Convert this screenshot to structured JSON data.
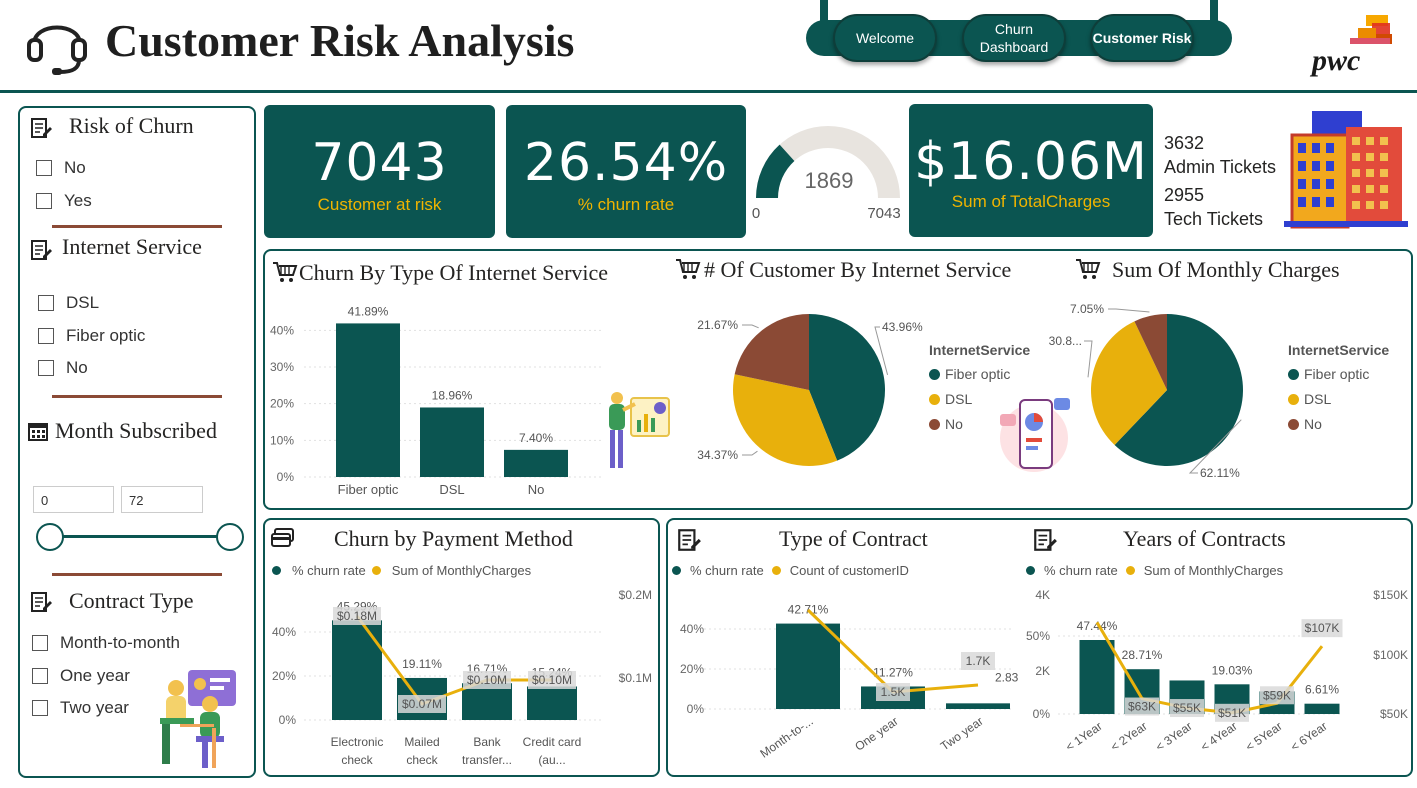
{
  "header": {
    "title": "Customer Risk Analysis",
    "nav": [
      "Welcome",
      "Churn Dashboard",
      "Customer Risk"
    ],
    "logo_text": "pwc"
  },
  "filters": {
    "risk": {
      "title": "Risk of Churn",
      "options": [
        "No",
        "Yes"
      ]
    },
    "internet": {
      "title": "Internet Service",
      "options": [
        "DSL",
        "Fiber optic",
        "No"
      ]
    },
    "month": {
      "title": "Month Subscribed",
      "min": "0",
      "max": "72"
    },
    "contract": {
      "title": "Contract Type",
      "options": [
        "Month-to-month",
        "One year",
        "Two year"
      ]
    }
  },
  "kpis": {
    "customers": {
      "value": "7043",
      "label": "Customer at risk"
    },
    "churn": {
      "value": "26.54%",
      "label": "% churn rate"
    },
    "gauge": {
      "value": "1869",
      "min": "0",
      "max": "7043",
      "fraction": 0.2654
    },
    "charges": {
      "value": "$16.06M",
      "label": "Sum of TotalCharges"
    },
    "tickets": {
      "admin_count": "3632",
      "admin_label": "Admin Tickets",
      "tech_count": "2955",
      "tech_label": "Tech Tickets"
    }
  },
  "colors": {
    "teal": "#0b5551",
    "gold": "#e8b00c",
    "brown": "#8b4a35"
  },
  "chart_data": [
    {
      "id": "churn_internet",
      "type": "bar",
      "title": "Churn By Type Of Internet Service",
      "categories": [
        "Fiber optic",
        "DSL",
        "No"
      ],
      "values": [
        41.89,
        18.96,
        7.4
      ],
      "labels": [
        "41.89%",
        "18.96%",
        "7.40%"
      ],
      "ticks": [
        "0%",
        "10%",
        "20%",
        "30%",
        "40%"
      ],
      "ylim": [
        0,
        45
      ]
    },
    {
      "id": "cust_internet",
      "type": "pie",
      "title": "# Of Customer By Internet Service",
      "legend_title": "InternetService",
      "categories": [
        "Fiber optic",
        "DSL",
        "No"
      ],
      "values": [
        43.96,
        34.37,
        21.67
      ],
      "labels": [
        "43.96%",
        "34.37%",
        "21.67%"
      ]
    },
    {
      "id": "monthly_internet",
      "type": "pie",
      "title": "Sum Of Monthly Charges",
      "legend_title": "InternetService",
      "categories": [
        "Fiber optic",
        "DSL",
        "No"
      ],
      "values": [
        62.11,
        30.84,
        7.05
      ],
      "labels": [
        "62.11%",
        "30.8...",
        "7.05%"
      ]
    },
    {
      "id": "payment",
      "type": "bar",
      "title": "Churn by Payment Method",
      "legend": [
        "% churn rate",
        "Sum of MonthlyCharges"
      ],
      "categories": [
        "Electronic check",
        "Mailed check",
        "Bank transfer...",
        "Credit card (au..."
      ],
      "series": [
        {
          "name": "% churn rate",
          "values": [
            45.29,
            19.11,
            16.71,
            15.24
          ],
          "labels": [
            "45.29%",
            "19.11%",
            "16.71%",
            "15.24%"
          ]
        },
        {
          "name": "Sum of MonthlyCharges",
          "values": [
            0.18,
            0.07,
            0.1,
            0.1
          ],
          "labels": [
            "$0.18M",
            "$0.07M",
            "$0.10M",
            "$0.10M"
          ]
        }
      ],
      "yticks": [
        "0%",
        "20%",
        "40%"
      ],
      "y2ticks": [
        "$0.1M",
        "$0.2M"
      ]
    },
    {
      "id": "contract",
      "type": "bar",
      "title": "Type of Contract",
      "legend": [
        "% churn rate",
        "Count of customerID"
      ],
      "categories": [
        "Month-to-...",
        "One year",
        "Two year"
      ],
      "series": [
        {
          "name": "% churn rate",
          "values": [
            42.71,
            11.27,
            2.83
          ],
          "labels": [
            "42.71%",
            "11.27%",
            "2.83%"
          ]
        },
        {
          "name": "Count of customerID",
          "values": [
            3.9,
            1.5,
            1.7
          ],
          "labels": [
            "",
            "1.5K",
            "1.7K"
          ]
        }
      ],
      "yticks": [
        "0%",
        "20%",
        "40%"
      ]
    },
    {
      "id": "years",
      "type": "bar",
      "title": "Years of Contracts",
      "legend": [
        "% churn rate",
        "Sum of MonthlyCharges"
      ],
      "categories": [
        "< 1Year",
        "< 2Year",
        "< 3Year",
        "< 4Year",
        "< 5Year",
        "< 6Year"
      ],
      "series": [
        {
          "name": "% churn rate",
          "values": [
            47.44,
            28.71,
            21.5,
            19.03,
            14.5,
            6.61
          ],
          "labels": [
            "47.44%",
            "28.71%",
            "",
            "19.03%",
            "",
            "6.61%"
          ]
        },
        {
          "name": "Sum of MonthlyCharges",
          "values": [
            127,
            63,
            55,
            51,
            59,
            107
          ],
          "labels": [
            "",
            "$63K",
            "$55K",
            "$51K",
            "$59K",
            "$107K"
          ]
        }
      ],
      "yticks": [
        "0%",
        "50%"
      ],
      "y3ticks": [
        "2K",
        "4K"
      ],
      "y2ticks": [
        "$50K",
        "$100K",
        "$150K"
      ]
    }
  ]
}
